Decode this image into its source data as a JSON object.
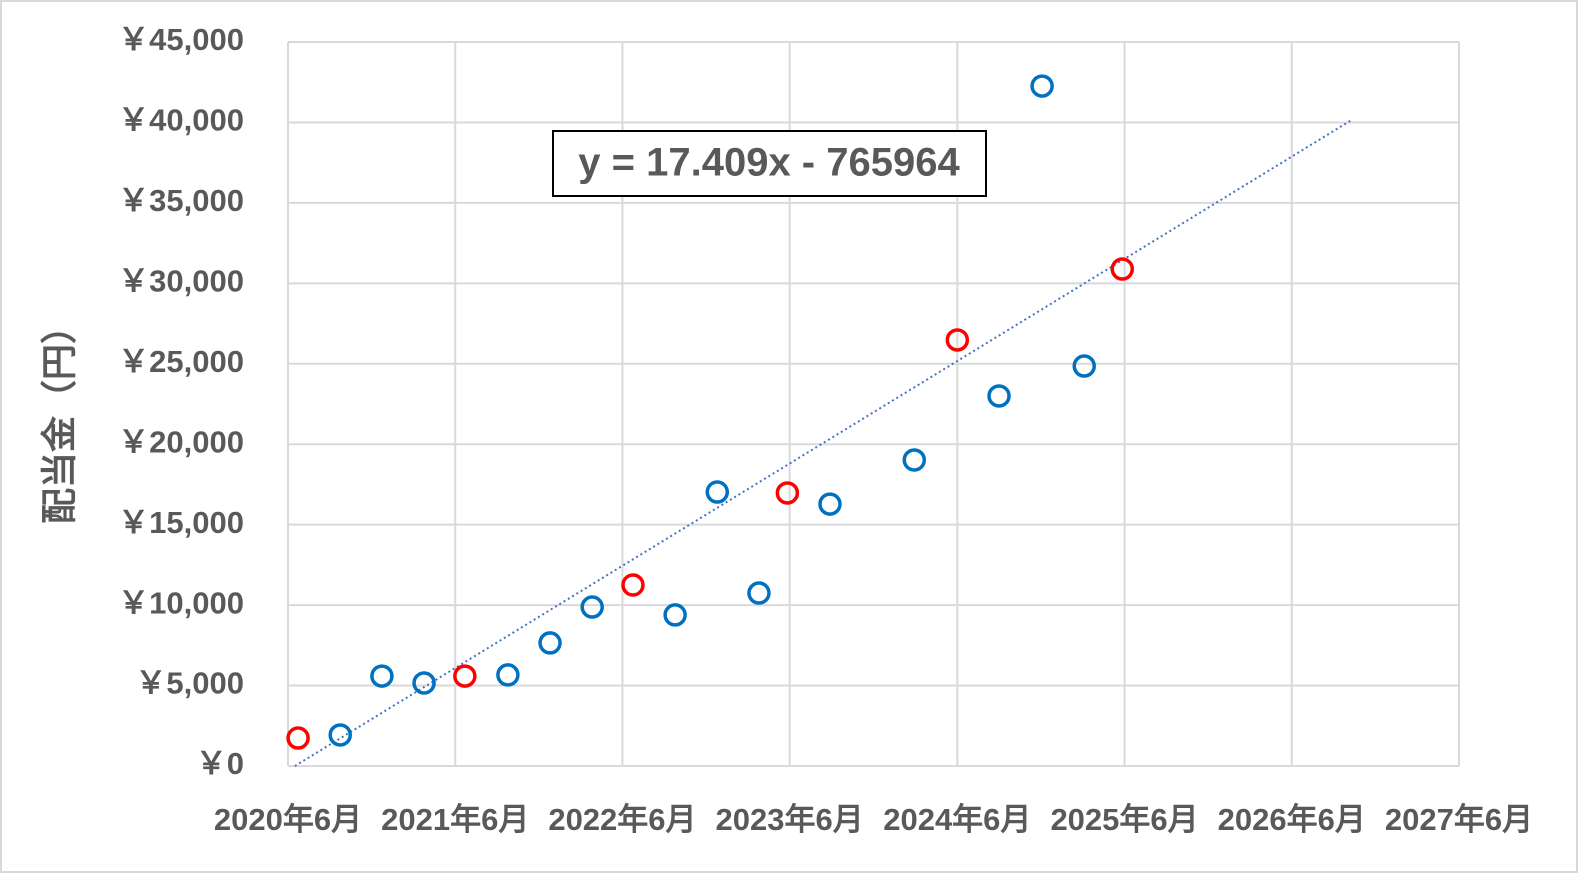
{
  "chart_data": {
    "type": "scatter",
    "y_label": "配当金（円）",
    "xlim": [
      43983,
      46539
    ],
    "xticks": [
      {
        "value": 43983,
        "label": "2020年6月"
      },
      {
        "value": 44348,
        "label": "2021年6月"
      },
      {
        "value": 44713,
        "label": "2022年6月"
      },
      {
        "value": 45078,
        "label": "2023年6月"
      },
      {
        "value": 45444,
        "label": "2024年6月"
      },
      {
        "value": 45809,
        "label": "2025年6月"
      },
      {
        "value": 46174,
        "label": "2026年6月"
      },
      {
        "value": 46539,
        "label": "2027年6月"
      }
    ],
    "ylim": [
      0,
      45000
    ],
    "yticks": [
      {
        "value": 0,
        "label": "￥0"
      },
      {
        "value": 5000,
        "label": "￥5,000"
      },
      {
        "value": 10000,
        "label": "￥10,000"
      },
      {
        "value": 15000,
        "label": "￥15,000"
      },
      {
        "value": 20000,
        "label": "￥20,000"
      },
      {
        "value": 25000,
        "label": "￥25,000"
      },
      {
        "value": 30000,
        "label": "￥30,000"
      },
      {
        "value": 35000,
        "label": "￥35,000"
      },
      {
        "value": 40000,
        "label": "￥40,000"
      },
      {
        "value": 45000,
        "label": "￥45,000"
      }
    ],
    "grid": true,
    "series": [
      {
        "color": "#0070c0",
        "x": [
          44097,
          44188,
          44280,
          44463,
          44555,
          44647,
          44828,
          44920,
          45011,
          45166,
          45350,
          45535,
          45629,
          45721
        ],
        "values": [
          1930,
          5590,
          5160,
          5660,
          7650,
          9880,
          9390,
          17030,
          10750,
          16280,
          19020,
          23000,
          42260,
          24860
        ]
      },
      {
        "color": "#ff0000",
        "x": [
          44005,
          44369,
          44736,
          45073,
          45444,
          45804
        ],
        "values": [
          1740,
          5590,
          11250,
          16970,
          26480,
          30890
        ]
      }
    ],
    "trendline": {
      "equation": "y = 17.409x - 765964",
      "slope": 17.409,
      "intercept": -765964,
      "x_range": [
        43998,
        46306
      ],
      "color": "#4472c4"
    }
  }
}
